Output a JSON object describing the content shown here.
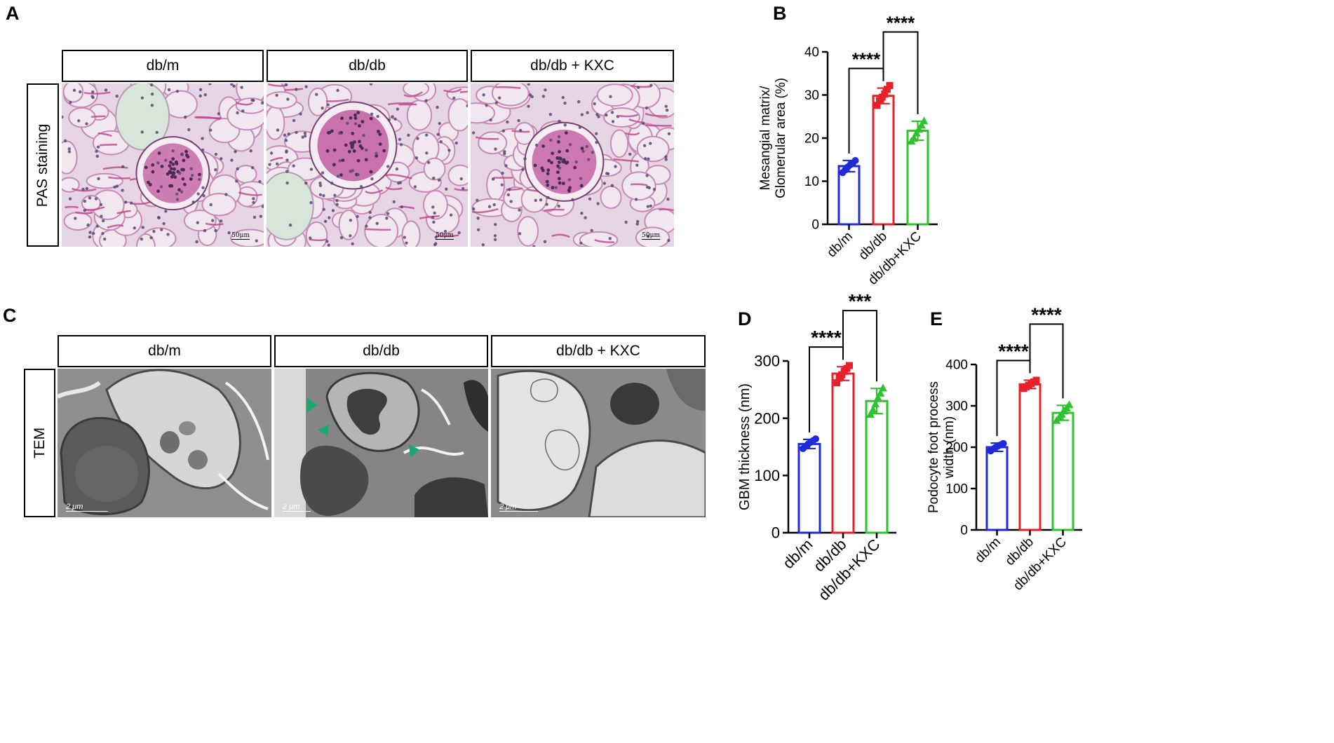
{
  "panels": {
    "A": {
      "letter": "A",
      "columns": [
        "db/m",
        "db/db",
        "db/db + KXC"
      ],
      "row_label": "PAS staining",
      "scale_bar": "50μm"
    },
    "C": {
      "letter": "C",
      "columns": [
        "db/m",
        "db/db",
        "db/db + KXC"
      ],
      "row_label": "TEM",
      "scale_bar": "2 μm"
    }
  },
  "colors": {
    "dbm": "#1f2bd6",
    "dbdb": "#e8202a",
    "kxc": "#2fc12f",
    "arrow": "#1aa86b",
    "pas_bg": "#e7d6e6",
    "tem_bg": "#9a9a9a"
  },
  "chart_data": [
    {
      "id": "B",
      "letter": "B",
      "type": "bar",
      "categories": [
        "db/m",
        "db/db",
        "db/db+KXC"
      ],
      "values": [
        13.5,
        29.8,
        21.7
      ],
      "errors": [
        1.3,
        1.8,
        2.2
      ],
      "points": [
        [
          12.0,
          12.6,
          13.3,
          13.8,
          14.2,
          14.8
        ],
        [
          27.6,
          28.7,
          29.5,
          30.2,
          31.3,
          32.2
        ],
        [
          19.3,
          20.0,
          21.2,
          22.1,
          23.0,
          24.0
        ]
      ],
      "point_shapes": [
        "circle",
        "square",
        "triangle"
      ],
      "ylabel": [
        "Mesangial matrix/",
        "Glomerular area (%)"
      ],
      "ylim": [
        0,
        40
      ],
      "yticks": [
        0,
        10,
        20,
        30,
        40
      ],
      "significance": [
        {
          "from": 0,
          "to": 1,
          "label": "****"
        },
        {
          "from": 1,
          "to": 2,
          "label": "****"
        }
      ]
    },
    {
      "id": "D",
      "letter": "D",
      "type": "bar",
      "categories": [
        "db/m",
        "db/db",
        "db/db+KXC"
      ],
      "values": [
        155,
        278,
        230
      ],
      "errors": [
        8,
        12,
        22
      ],
      "points": [
        [
          147,
          151,
          155,
          158,
          161,
          164
        ],
        [
          262,
          270,
          276,
          282,
          287,
          292
        ],
        [
          207,
          215,
          225,
          236,
          244,
          253
        ]
      ],
      "point_shapes": [
        "circle",
        "square",
        "triangle"
      ],
      "ylabel": [
        "GBM thickness (nm)"
      ],
      "ylim": [
        0,
        300
      ],
      "yticks": [
        0,
        100,
        200,
        300
      ],
      "significance": [
        {
          "from": 0,
          "to": 1,
          "label": "****"
        },
        {
          "from": 1,
          "to": 2,
          "label": "***"
        }
      ]
    },
    {
      "id": "E",
      "letter": "E",
      "type": "bar",
      "categories": [
        "db/m",
        "db/db",
        "db/db+KXC"
      ],
      "values": [
        200,
        352,
        283
      ],
      "errors": [
        10,
        10,
        18
      ],
      "points": [
        [
          191,
          196,
          200,
          203,
          206,
          209
        ],
        [
          342,
          346,
          350,
          354,
          358,
          362
        ],
        [
          265,
          272,
          280,
          288,
          295,
          303
        ]
      ],
      "point_shapes": [
        "circle",
        "square",
        "triangle"
      ],
      "ylabel": [
        "Podocyte foot process",
        "width (nm)"
      ],
      "ylim": [
        0,
        400
      ],
      "yticks": [
        0,
        100,
        200,
        300,
        400
      ],
      "significance": [
        {
          "from": 0,
          "to": 1,
          "label": "****"
        },
        {
          "from": 1,
          "to": 2,
          "label": "****"
        }
      ]
    }
  ]
}
